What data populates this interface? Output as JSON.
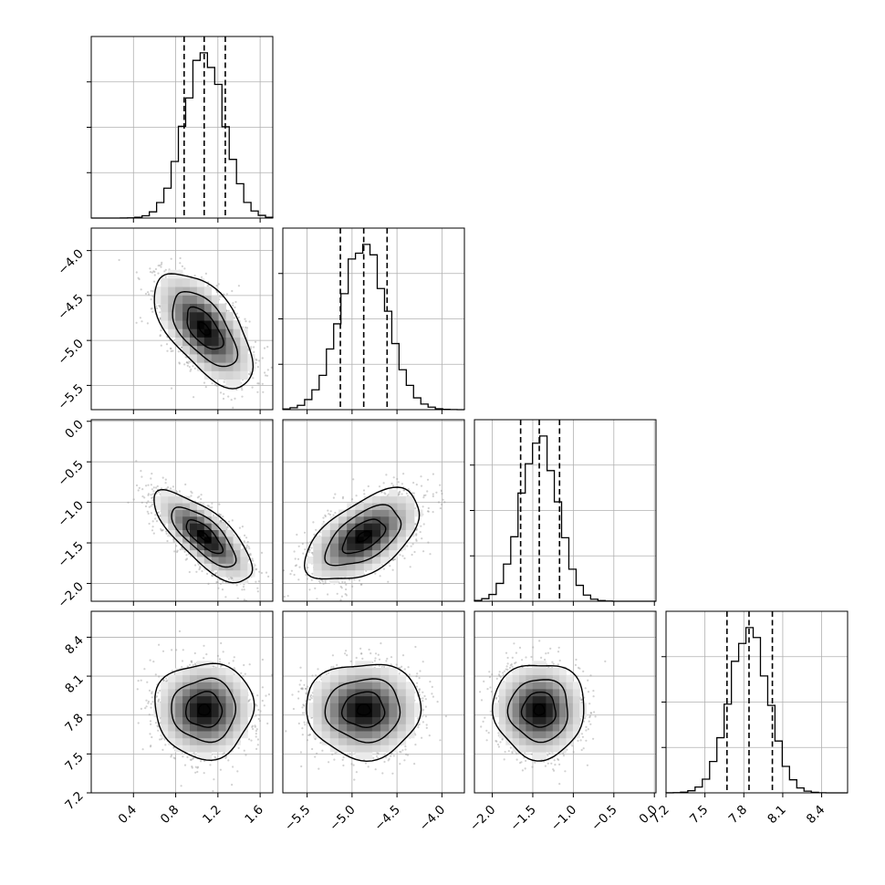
{
  "chart_data": {
    "type": "corner",
    "params": [
      {
        "ticks": [
          0.4,
          0.8,
          1.2,
          1.6
        ],
        "tick_labels": [
          "0.4",
          "0.8",
          "1.2",
          "1.6"
        ],
        "range": [
          0.0,
          1.72
        ],
        "mean": 1.07,
        "sd": 0.19,
        "quantiles": [
          0.88,
          1.07,
          1.27
        ]
      },
      {
        "ticks": [
          -5.5,
          -5.0,
          -4.5,
          -4.0
        ],
        "tick_labels": [
          "−5.5",
          "−5.0",
          "−4.5",
          "−4.0"
        ],
        "range": [
          -5.77,
          -3.75
        ],
        "mean": -4.87,
        "sd": 0.26,
        "quantiles": [
          -5.13,
          -4.87,
          -4.61
        ]
      },
      {
        "ticks": [
          -2.0,
          -1.5,
          -1.0,
          -0.5,
          0.0
        ],
        "tick_labels": [
          "−2.0",
          "−1.5",
          "−1.0",
          "−0.5",
          "0.0"
        ],
        "y_ticks": [
          0.0,
          -0.5,
          -1.0,
          -1.5,
          -2.0
        ],
        "y_tick_labels": [
          "0.0",
          "−0.5",
          "−1.0",
          "−1.5",
          "−2.0"
        ],
        "range": [
          -2.22,
          0.02
        ],
        "mean": -1.42,
        "sd": 0.23,
        "quantiles": [
          -1.65,
          -1.42,
          -1.17
        ]
      },
      {
        "ticks": [
          7.5,
          7.8,
          8.1,
          8.4
        ],
        "tick_labels": [
          "7.5",
          "7.8",
          "8.1",
          "8.4"
        ],
        "y_ticks": [
          8.4,
          8.1,
          7.8,
          7.5,
          7.2
        ],
        "y_tick_labels": [
          "8.4",
          "8.1",
          "7.8",
          "7.5",
          "7.2"
        ],
        "extra_x_ticks": [
          7.2
        ],
        "extra_x_tick_labels": [
          "7.2"
        ],
        "range": [
          7.2,
          8.6
        ],
        "mean": 7.84,
        "sd": 0.15,
        "quantiles": [
          7.67,
          7.84,
          8.02
        ]
      }
    ],
    "correlations": {
      "1-0": -0.6,
      "2-0": -0.75,
      "2-1": 0.55,
      "3-0": 0.0,
      "3-1": 0.0,
      "3-2": 0.0
    },
    "hist_bins": 25,
    "grid": true,
    "contour_levels": 4,
    "colors": {
      "contour": "#000000",
      "scatter": "#9a9a9a",
      "hist": "#000000",
      "grid": "#b0b0b0"
    }
  }
}
